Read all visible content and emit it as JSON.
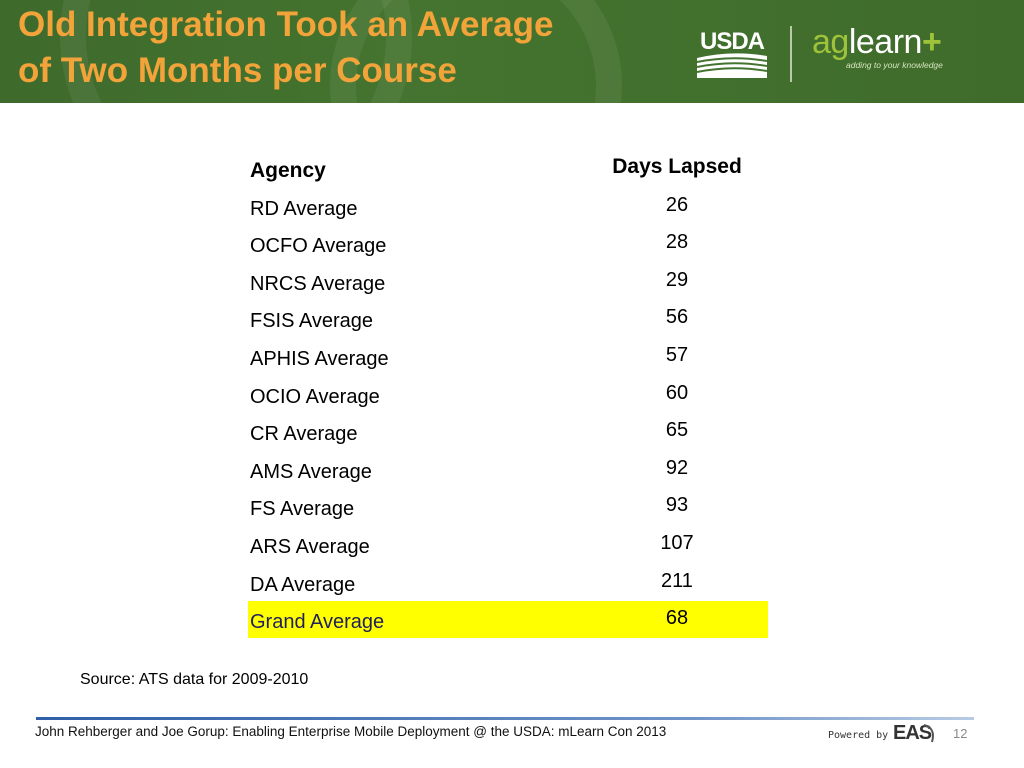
{
  "slide": {
    "title_line1": "Old Integration Took an Average",
    "title_line2": "of Two Months per Course"
  },
  "logos": {
    "usda": "USDA",
    "aglearn_ag": "ag",
    "aglearn_rest": "learn",
    "aglearn_plus": "+",
    "aglearn_tagline": "adding to your knowledge"
  },
  "table": {
    "headers": {
      "agency": "Agency",
      "days": "Days Lapsed"
    },
    "rows": [
      {
        "agency": "RD Average",
        "days": "26"
      },
      {
        "agency": "OCFO Average",
        "days": "28"
      },
      {
        "agency": "NRCS Average",
        "days": "29"
      },
      {
        "agency": "FSIS Average",
        "days": "56"
      },
      {
        "agency": "APHIS Average",
        "days": "57"
      },
      {
        "agency": "OCIO Average",
        "days": "60"
      },
      {
        "agency": "CR Average",
        "days": "65"
      },
      {
        "agency": "AMS Average",
        "days": "92"
      },
      {
        "agency": "FS Average",
        "days": "93"
      },
      {
        "agency": "ARS Average",
        "days": "107"
      },
      {
        "agency": "DA Average",
        "days": "211"
      }
    ],
    "grand": {
      "agency": "Grand Average",
      "days": "68"
    },
    "highlight_color": "#ffff00"
  },
  "source": "Source: ATS data for 2009-2010",
  "footer": {
    "text": "John Rehberger  and Joe Gorup: Enabling Enterprise Mobile Deployment  @ the USDA: mLearn Con 2013",
    "powered_by": "Powered by",
    "eas": "EAS",
    "page_number": "12"
  },
  "colors": {
    "header_green": "#44742f",
    "title_orange": "#f2a33a",
    "aglearn_green": "#9ec33b"
  }
}
